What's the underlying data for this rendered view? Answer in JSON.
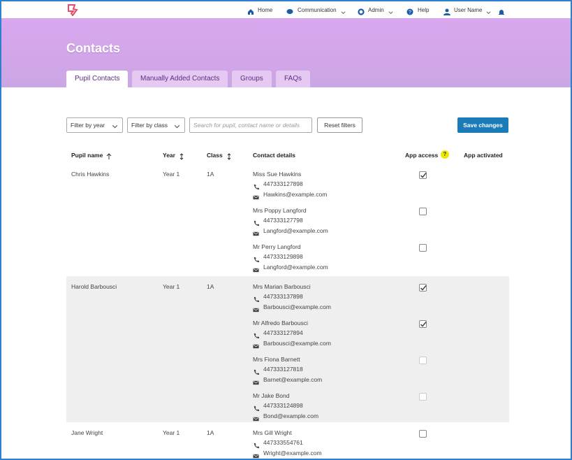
{
  "nav": {
    "items": [
      "Home",
      "Communication",
      "Admin",
      "Help",
      "User Name"
    ]
  },
  "header": {
    "title": "Contacts"
  },
  "tabs": [
    {
      "label": "Pupil Contacts",
      "active": true
    },
    {
      "label": "Manually Added Contacts",
      "active": false
    },
    {
      "label": "Groups",
      "active": false
    },
    {
      "label": "FAQs",
      "active": false
    }
  ],
  "filters": {
    "year": "Filter by year",
    "class": "Filter by class",
    "search_placeholder": "Search for pupil, contact name or details",
    "reset": "Reset filters",
    "save": "Save changes"
  },
  "table": {
    "headers": [
      "Pupil name",
      "Year",
      "Class",
      "Contact details",
      "App access",
      "App activated"
    ],
    "help": "?",
    "rows": [
      {
        "pupil": "Chris Hawkins",
        "year": "Year 1",
        "class": "1A",
        "contacts": [
          {
            "name": "Miss Sue Hawkins",
            "phone": "447333127898",
            "email": "Hawkins@example.com",
            "app_access": "checked"
          },
          {
            "name": "Mrs Poppy Langford",
            "phone": "447333127798",
            "email": "Langford@example.com",
            "app_access": "unchecked"
          },
          {
            "name": "Mr Perry Langford",
            "phone": "447333129898",
            "email": "Langford@example.com",
            "app_access": "unchecked"
          }
        ]
      },
      {
        "pupil": "Harold Barbousci",
        "year": "Year 1",
        "class": "1A",
        "contacts": [
          {
            "name": "Mrs Marian Barbousci",
            "phone": "447333137898",
            "email": "Barbousci@example.com",
            "app_access": "checked"
          },
          {
            "name": "Mr Alfredo Barbousci",
            "phone": "447333127894",
            "email": "Barbousci@example.com",
            "app_access": "checked"
          },
          {
            "name": "Mrs Fiona Barnett",
            "phone": "447333127818",
            "email": "Barnet@example.com",
            "app_access": "disabled"
          },
          {
            "name": "Mr Jake Bond",
            "phone": "447333124898",
            "email": "Bond@example.com",
            "app_access": "disabled"
          }
        ]
      },
      {
        "pupil": "Jane Wright",
        "year": "Year 1",
        "class": "1A",
        "contacts": [
          {
            "name": "Mrs Gill Wright",
            "phone": "447333554761",
            "email": "Wright@example.com",
            "app_access": "unchecked"
          }
        ]
      }
    ]
  }
}
